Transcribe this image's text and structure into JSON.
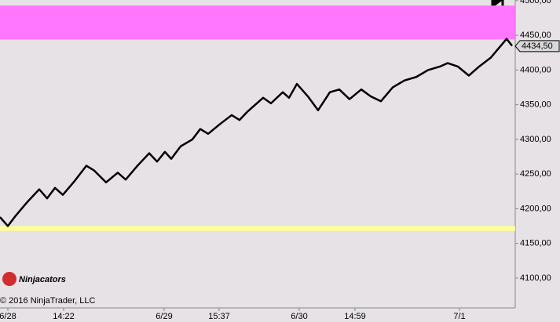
{
  "chart_data": {
    "type": "line",
    "x": [
      0,
      10,
      20,
      35,
      50,
      60,
      70,
      80,
      95,
      110,
      120,
      135,
      150,
      160,
      175,
      190,
      200,
      210,
      218,
      230,
      245,
      255,
      265,
      280,
      295,
      305,
      315,
      335,
      345,
      360,
      368,
      378,
      392,
      405,
      420,
      432,
      445,
      460,
      472,
      485,
      500,
      515,
      530,
      545,
      560,
      570,
      583,
      597,
      610,
      625,
      645,
      652
    ],
    "series": [
      {
        "color": "#000000",
        "values": [
          4188,
          4175,
          4190,
          4210,
          4228,
          4215,
          4230,
          4220,
          4240,
          4262,
          4255,
          4238,
          4252,
          4242,
          4262,
          4280,
          4268,
          4282,
          4272,
          4290,
          4300,
          4315,
          4308,
          4322,
          4335,
          4328,
          4340,
          4360,
          4352,
          4368,
          4360,
          4380,
          4362,
          4342,
          4368,
          4372,
          4358,
          4372,
          4362,
          4355,
          4375,
          4385,
          4390,
          4400,
          4405,
          4410,
          4405,
          4392,
          4405,
          4418,
          4445,
          4435
        ]
      }
    ],
    "xlim": [
      0,
      656
    ],
    "xticks": [
      {
        "value": 10,
        "label": "6/28"
      },
      {
        "value": 81,
        "label": "14:22"
      },
      {
        "value": 209,
        "label": "6/29"
      },
      {
        "value": 279,
        "label": "15:37"
      },
      {
        "value": 381,
        "label": "6/30"
      },
      {
        "value": 452,
        "label": "14:59"
      },
      {
        "value": 585,
        "label": "7/1"
      }
    ],
    "ylim": [
      4057,
      4501
    ],
    "yticks": [
      {
        "value": 4100,
        "label": "4100,00"
      },
      {
        "value": 4150,
        "label": "4150,00"
      },
      {
        "value": 4200,
        "label": "4200,00"
      },
      {
        "value": 4250,
        "label": "4250,00"
      },
      {
        "value": 4300,
        "label": "4300,00"
      },
      {
        "value": 4350,
        "label": "4350,00"
      },
      {
        "value": 4400,
        "label": "4400,00"
      },
      {
        "value": 4450,
        "label": "4450,00"
      },
      {
        "value": 4500,
        "label": "4500,00"
      }
    ],
    "zones": [
      {
        "from": 4444,
        "to": 4493,
        "color": "#ff77ff"
      },
      {
        "from": 4168,
        "to": 4175,
        "color": "#ffff99"
      }
    ],
    "last_price": {
      "value": 4434.5,
      "label": "4434,50"
    },
    "watermark": "Ninjacators",
    "copyright": "© 2016 NinjaTrader, LLC"
  }
}
